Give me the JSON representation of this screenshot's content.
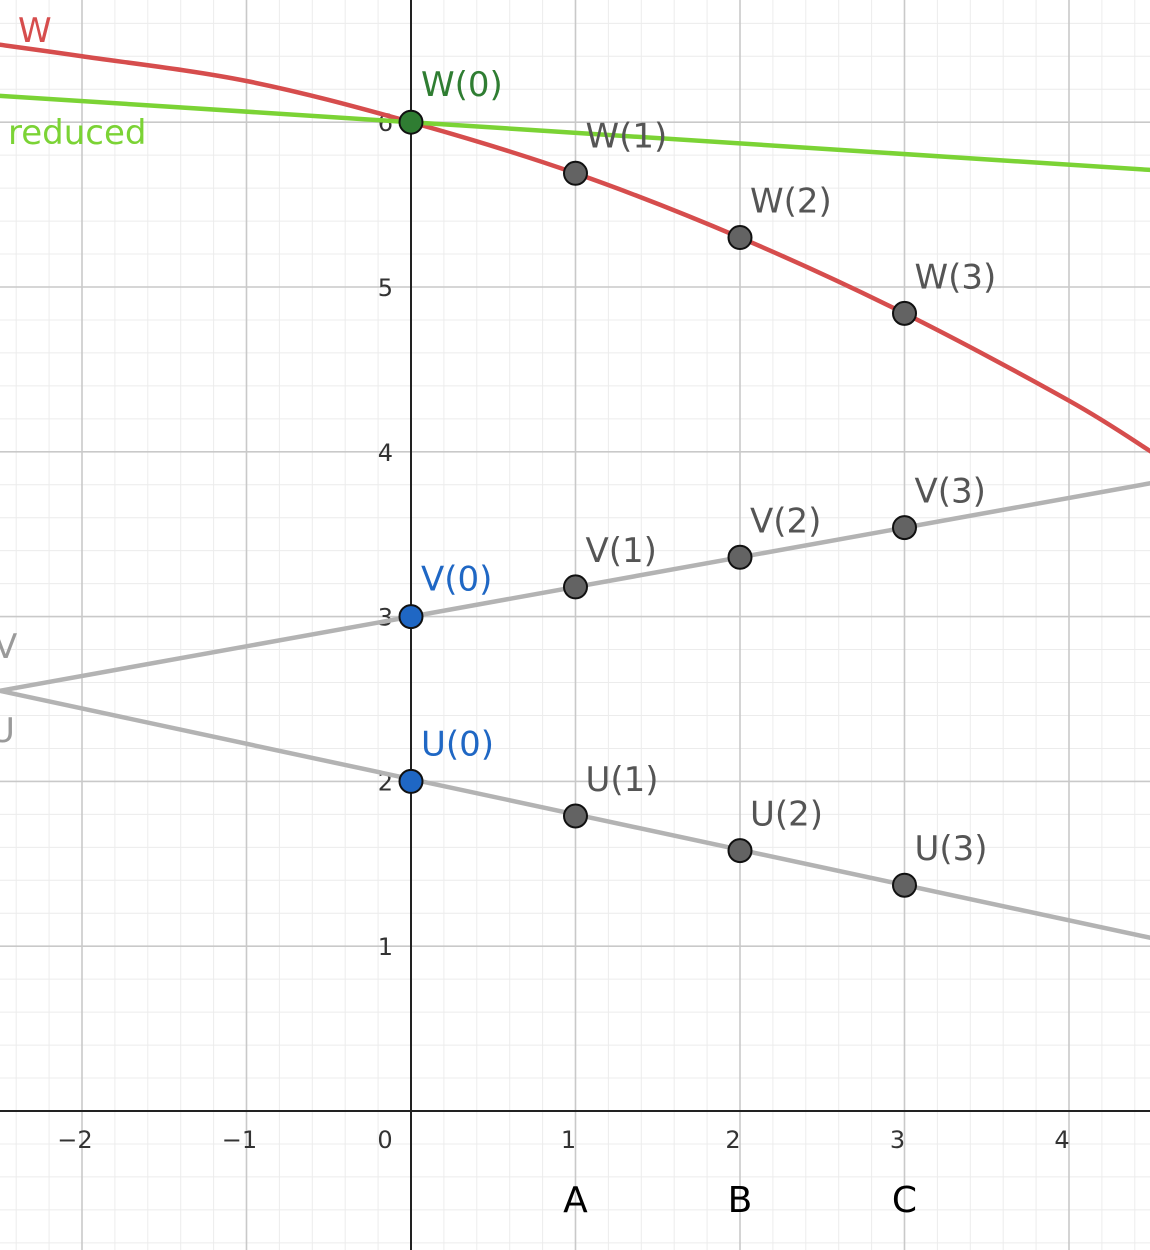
{
  "chart_data": {
    "type": "line",
    "xlim": [
      -2.5,
      4.5
    ],
    "ylim": [
      -0.8,
      6.75
    ],
    "grid": true,
    "x_ticks": [
      "−2",
      "−1",
      "0",
      "1",
      "2",
      "3",
      "4"
    ],
    "y_ticks": [
      "1",
      "2",
      "3",
      "4",
      "5",
      "6"
    ],
    "categories": [
      "A",
      "B",
      "C"
    ],
    "category_x": [
      1,
      2,
      3
    ],
    "curves": [
      {
        "name": "W",
        "color": "#d64d4d",
        "points": [
          [
            -2.5,
            6.47
          ],
          [
            -2,
            6.4
          ],
          [
            -1,
            6.25
          ],
          [
            0,
            6.0
          ],
          [
            1,
            5.69
          ],
          [
            2,
            5.3
          ],
          [
            3,
            4.84
          ],
          [
            4,
            4.31
          ],
          [
            4.5,
            4.0
          ]
        ]
      },
      {
        "name": "reduced",
        "color": "#7bd335",
        "points": [
          [
            -2.5,
            6.16
          ],
          [
            0,
            6.0
          ],
          [
            4.5,
            5.71
          ]
        ]
      },
      {
        "name": "V",
        "color": "#b3b3b3",
        "points": [
          [
            -2.5,
            2.55
          ],
          [
            4.5,
            3.81
          ]
        ]
      },
      {
        "name": "U",
        "color": "#b3b3b3",
        "points": [
          [
            -2.5,
            2.55
          ],
          [
            4.5,
            1.05
          ]
        ]
      }
    ],
    "points": [
      {
        "label": "W(0)",
        "x": 0,
        "y": 6.0,
        "fill": "#2f7d32",
        "text_color": "#2f7d32"
      },
      {
        "label": "W(1)",
        "x": 1,
        "y": 5.69,
        "fill": "#636363",
        "text_color": "#555555"
      },
      {
        "label": "W(2)",
        "x": 2,
        "y": 5.3,
        "fill": "#636363",
        "text_color": "#555555"
      },
      {
        "label": "W(3)",
        "x": 3,
        "y": 4.84,
        "fill": "#636363",
        "text_color": "#555555"
      },
      {
        "label": "V(0)",
        "x": 0,
        "y": 3.0,
        "fill": "#1f67c4",
        "text_color": "#1f67c4"
      },
      {
        "label": "V(1)",
        "x": 1,
        "y": 3.18,
        "fill": "#636363",
        "text_color": "#555555"
      },
      {
        "label": "V(2)",
        "x": 2,
        "y": 3.36,
        "fill": "#636363",
        "text_color": "#555555"
      },
      {
        "label": "V(3)",
        "x": 3,
        "y": 3.54,
        "fill": "#636363",
        "text_color": "#555555"
      },
      {
        "label": "U(0)",
        "x": 0,
        "y": 2.0,
        "fill": "#1f67c4",
        "text_color": "#1f67c4"
      },
      {
        "label": "U(1)",
        "x": 1,
        "y": 1.79,
        "fill": "#636363",
        "text_color": "#555555"
      },
      {
        "label": "U(2)",
        "x": 2,
        "y": 1.58,
        "fill": "#636363",
        "text_color": "#555555"
      },
      {
        "label": "U(3)",
        "x": 3,
        "y": 1.37,
        "fill": "#636363",
        "text_color": "#555555"
      }
    ]
  }
}
